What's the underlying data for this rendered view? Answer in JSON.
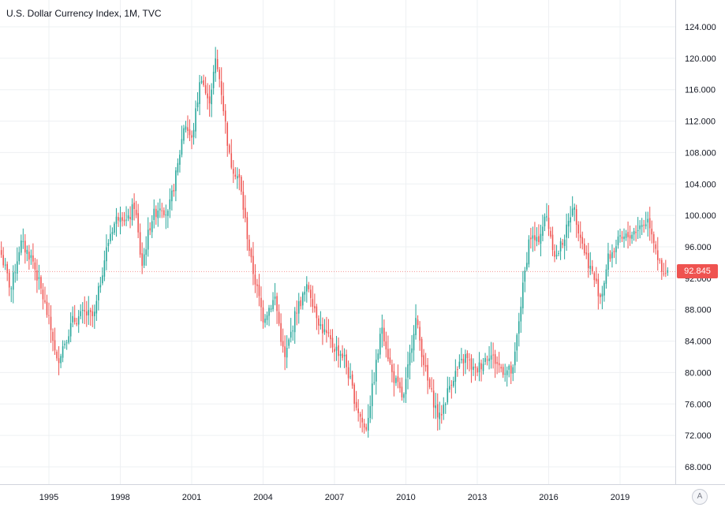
{
  "title": "U.S. Dollar Currency Index, 1M, TVC",
  "last_price_label": "92.845",
  "auto_label": "A",
  "colors": {
    "up": "#26a69a",
    "down": "#ef5350",
    "grid": "#eef0f3",
    "text": "#131722"
  },
  "chart_data": {
    "type": "candlestick",
    "title": "U.S. Dollar Currency Index, 1M, TVC",
    "interval": "1M",
    "xlabel": "",
    "ylabel": "",
    "ylim": [
      65,
      126
    ],
    "y_ticks": [
      124,
      120,
      116,
      112,
      108,
      104,
      100,
      96,
      92,
      88,
      84,
      80,
      76,
      72,
      68
    ],
    "y_tick_labels": [
      "124.000",
      "120.000",
      "116.000",
      "112.000",
      "108.000",
      "104.000",
      "100.000",
      "96.000",
      "92.000",
      "88.000",
      "84.000",
      "80.000",
      "76.000",
      "72.000",
      "68.000"
    ],
    "x_tick_labels": [
      "1995",
      "1998",
      "2001",
      "2004",
      "2007",
      "2010",
      "2013",
      "2016",
      "2019"
    ],
    "x_ticks_years": [
      1995,
      1998,
      2001,
      2004,
      2007,
      2010,
      2013,
      2016,
      2019
    ],
    "xlim_years": [
      1993.0,
      2020.98
    ],
    "grid": true,
    "last_price": 92.845,
    "anchors": [
      [
        1993.0,
        95.0
      ],
      [
        1993.4,
        90.5
      ],
      [
        1993.8,
        96.5
      ],
      [
        1994.3,
        94.5
      ],
      [
        1994.8,
        89.0
      ],
      [
        1995.2,
        84.0
      ],
      [
        1995.3,
        81.0
      ],
      [
        1995.6,
        83.5
      ],
      [
        1996.0,
        86.5
      ],
      [
        1996.5,
        87.5
      ],
      [
        1996.9,
        87.0
      ],
      [
        1997.3,
        94.0
      ],
      [
        1997.6,
        98.0
      ],
      [
        1998.0,
        100.5
      ],
      [
        1998.3,
        99.0
      ],
      [
        1998.6,
        101.5
      ],
      [
        1998.9,
        93.5
      ],
      [
        1999.3,
        99.5
      ],
      [
        1999.7,
        101.5
      ],
      [
        2000.0,
        100.0
      ],
      [
        2000.4,
        106.0
      ],
      [
        2000.7,
        112.0
      ],
      [
        2001.0,
        109.5
      ],
      [
        2001.4,
        118.0
      ],
      [
        2001.7,
        114.0
      ],
      [
        2002.0,
        119.5
      ],
      [
        2002.2,
        117.0
      ],
      [
        2002.6,
        107.0
      ],
      [
        2003.0,
        104.5
      ],
      [
        2003.5,
        94.0
      ],
      [
        2004.0,
        87.0
      ],
      [
        2004.5,
        89.5
      ],
      [
        2004.9,
        81.5
      ],
      [
        2005.4,
        88.0
      ],
      [
        2005.9,
        91.0
      ],
      [
        2006.4,
        86.0
      ],
      [
        2006.9,
        83.5
      ],
      [
        2007.4,
        82.0
      ],
      [
        2007.9,
        76.0
      ],
      [
        2008.3,
        72.5
      ],
      [
        2008.7,
        80.0
      ],
      [
        2009.0,
        86.0
      ],
      [
        2009.4,
        80.0
      ],
      [
        2009.9,
        76.5
      ],
      [
        2010.4,
        87.0
      ],
      [
        2010.9,
        79.0
      ],
      [
        2011.4,
        74.0
      ],
      [
        2011.9,
        79.0
      ],
      [
        2012.5,
        82.0
      ],
      [
        2012.9,
        80.0
      ],
      [
        2013.5,
        82.5
      ],
      [
        2014.0,
        80.5
      ],
      [
        2014.5,
        80.0
      ],
      [
        2014.8,
        88.0
      ],
      [
        2015.2,
        97.5
      ],
      [
        2015.5,
        96.5
      ],
      [
        2015.9,
        100.0
      ],
      [
        2016.3,
        94.5
      ],
      [
        2016.8,
        98.5
      ],
      [
        2017.0,
        101.5
      ],
      [
        2017.5,
        95.5
      ],
      [
        2017.9,
        92.0
      ],
      [
        2018.2,
        89.5
      ],
      [
        2018.5,
        94.5
      ],
      [
        2018.9,
        96.5
      ],
      [
        2019.4,
        97.5
      ],
      [
        2019.8,
        98.5
      ],
      [
        2020.2,
        99.5
      ],
      [
        2020.5,
        96.0
      ],
      [
        2020.7,
        93.0
      ],
      [
        2020.85,
        92.0
      ],
      [
        2020.98,
        92.845
      ]
    ]
  }
}
